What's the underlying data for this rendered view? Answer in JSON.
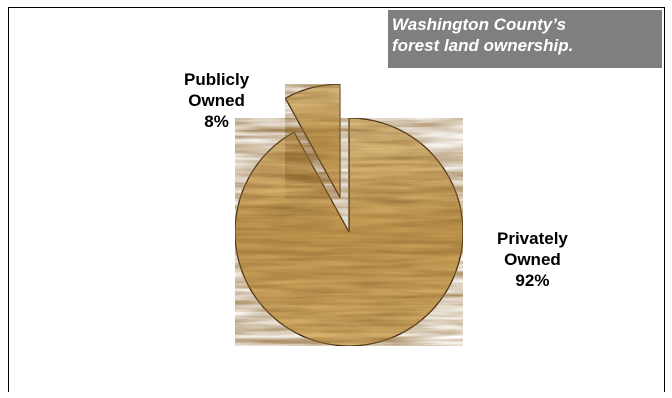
{
  "chart_data": {
    "type": "pie",
    "title": "Washington County’s forest land ownership.",
    "title_lines": [
      "Washington County’s",
      "forest land ownership."
    ],
    "slices": [
      {
        "label_lines": [
          "Privately",
          "Owned",
          "92%"
        ],
        "label": "Privately Owned",
        "value": 92,
        "exploded": false
      },
      {
        "label_lines": [
          "Publicly",
          "Owned",
          "8%"
        ],
        "label": "Publicly Owned",
        "value": 8,
        "exploded": true
      }
    ],
    "fill": "wood-grain texture",
    "colors": {
      "wood_light": "#e7c88a",
      "wood_mid": "#c99f55",
      "wood_dark": "#8c642b",
      "outline": "#000000",
      "title_background": "#7f7f7f",
      "title_text": "#ffffff"
    },
    "legend": "none"
  }
}
